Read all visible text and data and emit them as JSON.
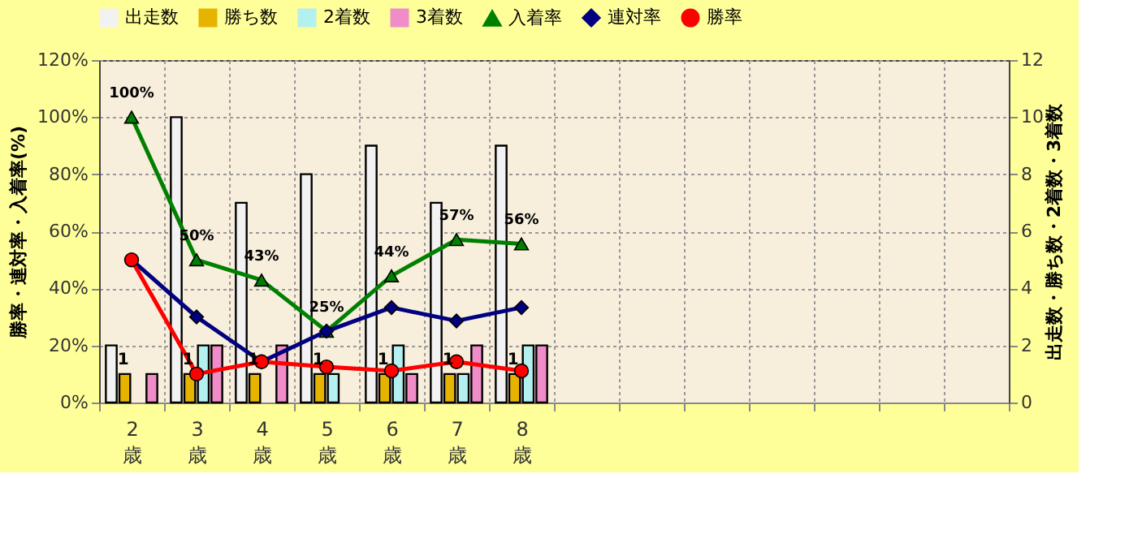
{
  "chart_data": {
    "type": "bar",
    "categories": [
      "2歳",
      "3歳",
      "4歳",
      "5歳",
      "6歳",
      "7歳",
      "8歳",
      null,
      null,
      null,
      null,
      null,
      null,
      null
    ],
    "ylabel": "勝率・連対率・入着率(%)",
    "y2label": "出走数・勝ち数・2着数・3着数",
    "ylim": [
      0,
      120
    ],
    "yticks": [
      {
        "value": 0,
        "label": "0%"
      },
      {
        "value": 20,
        "label": "20%"
      },
      {
        "value": 40,
        "label": "40%"
      },
      {
        "value": 60,
        "label": "60%"
      },
      {
        "value": 80,
        "label": "80%"
      },
      {
        "value": 100,
        "label": "100%"
      },
      {
        "value": 120,
        "label": "120%"
      }
    ],
    "y2lim": [
      0,
      12
    ],
    "y2ticks": [
      0,
      2,
      4,
      6,
      8,
      10,
      12
    ],
    "grid": true,
    "legend": "top",
    "series": [
      {
        "name": "出走数",
        "axis": "y2",
        "color": "#f2f2f2",
        "values": [
          2,
          10,
          7,
          8,
          9,
          7,
          9,
          null,
          null,
          null,
          null,
          null,
          null,
          null
        ]
      },
      {
        "name": "勝ち数",
        "axis": "y2",
        "color": "#e6b400",
        "values": [
          1,
          1,
          1,
          1,
          1,
          1,
          1,
          null,
          null,
          null,
          null,
          null,
          null,
          null
        ],
        "value_labels": [
          "1",
          "1",
          "1",
          "1",
          "1",
          "1",
          "1",
          null,
          null,
          null,
          null,
          null,
          null,
          null
        ]
      },
      {
        "name": "2着数",
        "axis": "y2",
        "color": "#b3f0f0",
        "values": [
          0,
          2,
          0,
          1,
          2,
          1,
          2,
          null,
          null,
          null,
          null,
          null,
          null,
          null
        ]
      },
      {
        "name": "3着数",
        "axis": "y2",
        "color": "#f08cc8",
        "values": [
          1,
          2,
          2,
          0,
          1,
          2,
          2,
          null,
          null,
          null,
          null,
          null,
          null,
          null
        ]
      },
      {
        "name": "入着率",
        "type": "line",
        "marker": "triangle",
        "color": "#008000",
        "values": [
          100,
          50,
          42.9,
          25,
          44.4,
          57.1,
          55.6,
          null,
          null,
          null,
          null,
          null,
          null,
          null
        ],
        "value_labels": [
          "100%",
          "50%",
          "43%",
          "25%",
          "44%",
          "57%",
          "56%",
          null,
          null,
          null,
          null,
          null,
          null,
          null
        ]
      },
      {
        "name": "連対率",
        "type": "line",
        "marker": "diamond",
        "color": "#000080",
        "values": [
          50,
          30,
          14.3,
          25,
          33.3,
          28.6,
          33.3,
          null,
          null,
          null,
          null,
          null,
          null,
          null
        ]
      },
      {
        "name": "勝率",
        "type": "line",
        "marker": "circle",
        "color": "#ff0000",
        "values": [
          50,
          10,
          14.3,
          12.5,
          11.1,
          14.3,
          11.1,
          null,
          null,
          null,
          null,
          null,
          null,
          null
        ]
      }
    ]
  }
}
